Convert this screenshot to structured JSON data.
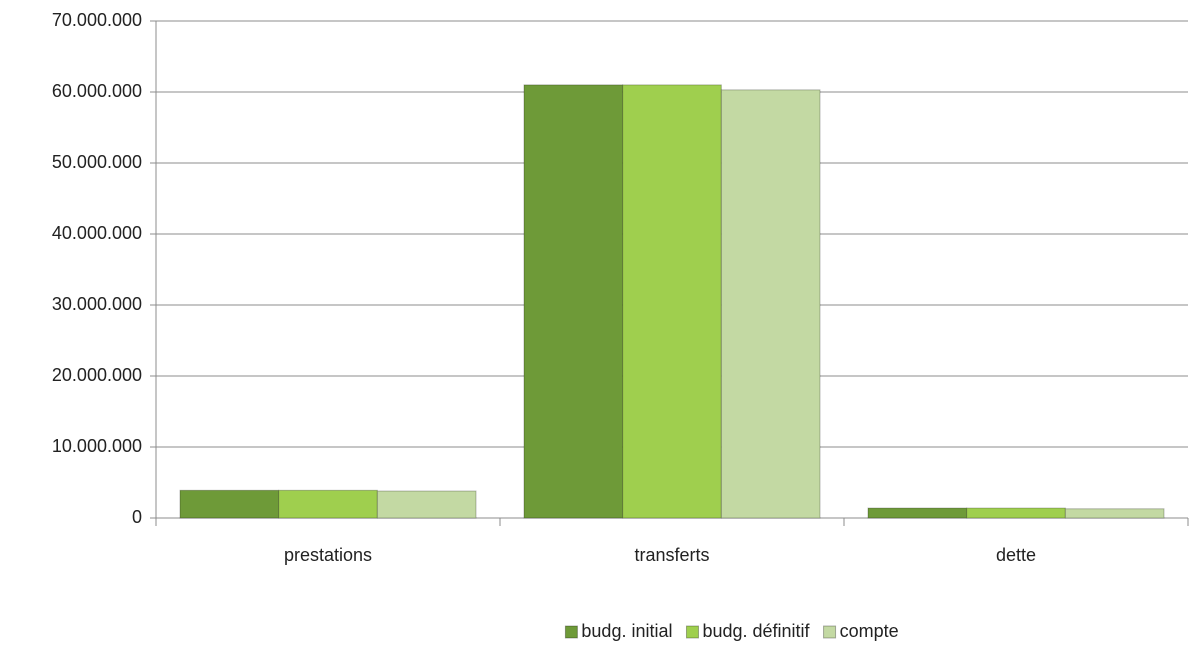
{
  "chart_data": {
    "type": "bar",
    "categories": [
      "prestations",
      "transferts",
      "dette"
    ],
    "series": [
      {
        "name": "budg. initial",
        "color": "#6e9a38",
        "values": [
          3900000,
          61000000,
          1400000
        ]
      },
      {
        "name": "budg. définitif",
        "color": "#9fcf4e",
        "values": [
          3900000,
          61000000,
          1400000
        ]
      },
      {
        "name": "compte",
        "color": "#c3d9a3",
        "values": [
          3800000,
          60300000,
          1300000
        ]
      }
    ],
    "ylim": [
      0,
      70000000
    ],
    "yticks": [
      0,
      {
        "value": 10000000,
        "label": "10.000.000"
      },
      {
        "value": 20000000,
        "label": "20.000.000"
      },
      {
        "value": 30000000,
        "label": "30.000.000"
      },
      {
        "value": 40000000,
        "label": "40.000.000"
      },
      {
        "value": 50000000,
        "label": "50.000.000"
      },
      {
        "value": 60000000,
        "label": "60.000.000"
      },
      {
        "value": 70000000,
        "label": "70.000.000"
      }
    ],
    "grid": true,
    "legend": "bottom"
  }
}
